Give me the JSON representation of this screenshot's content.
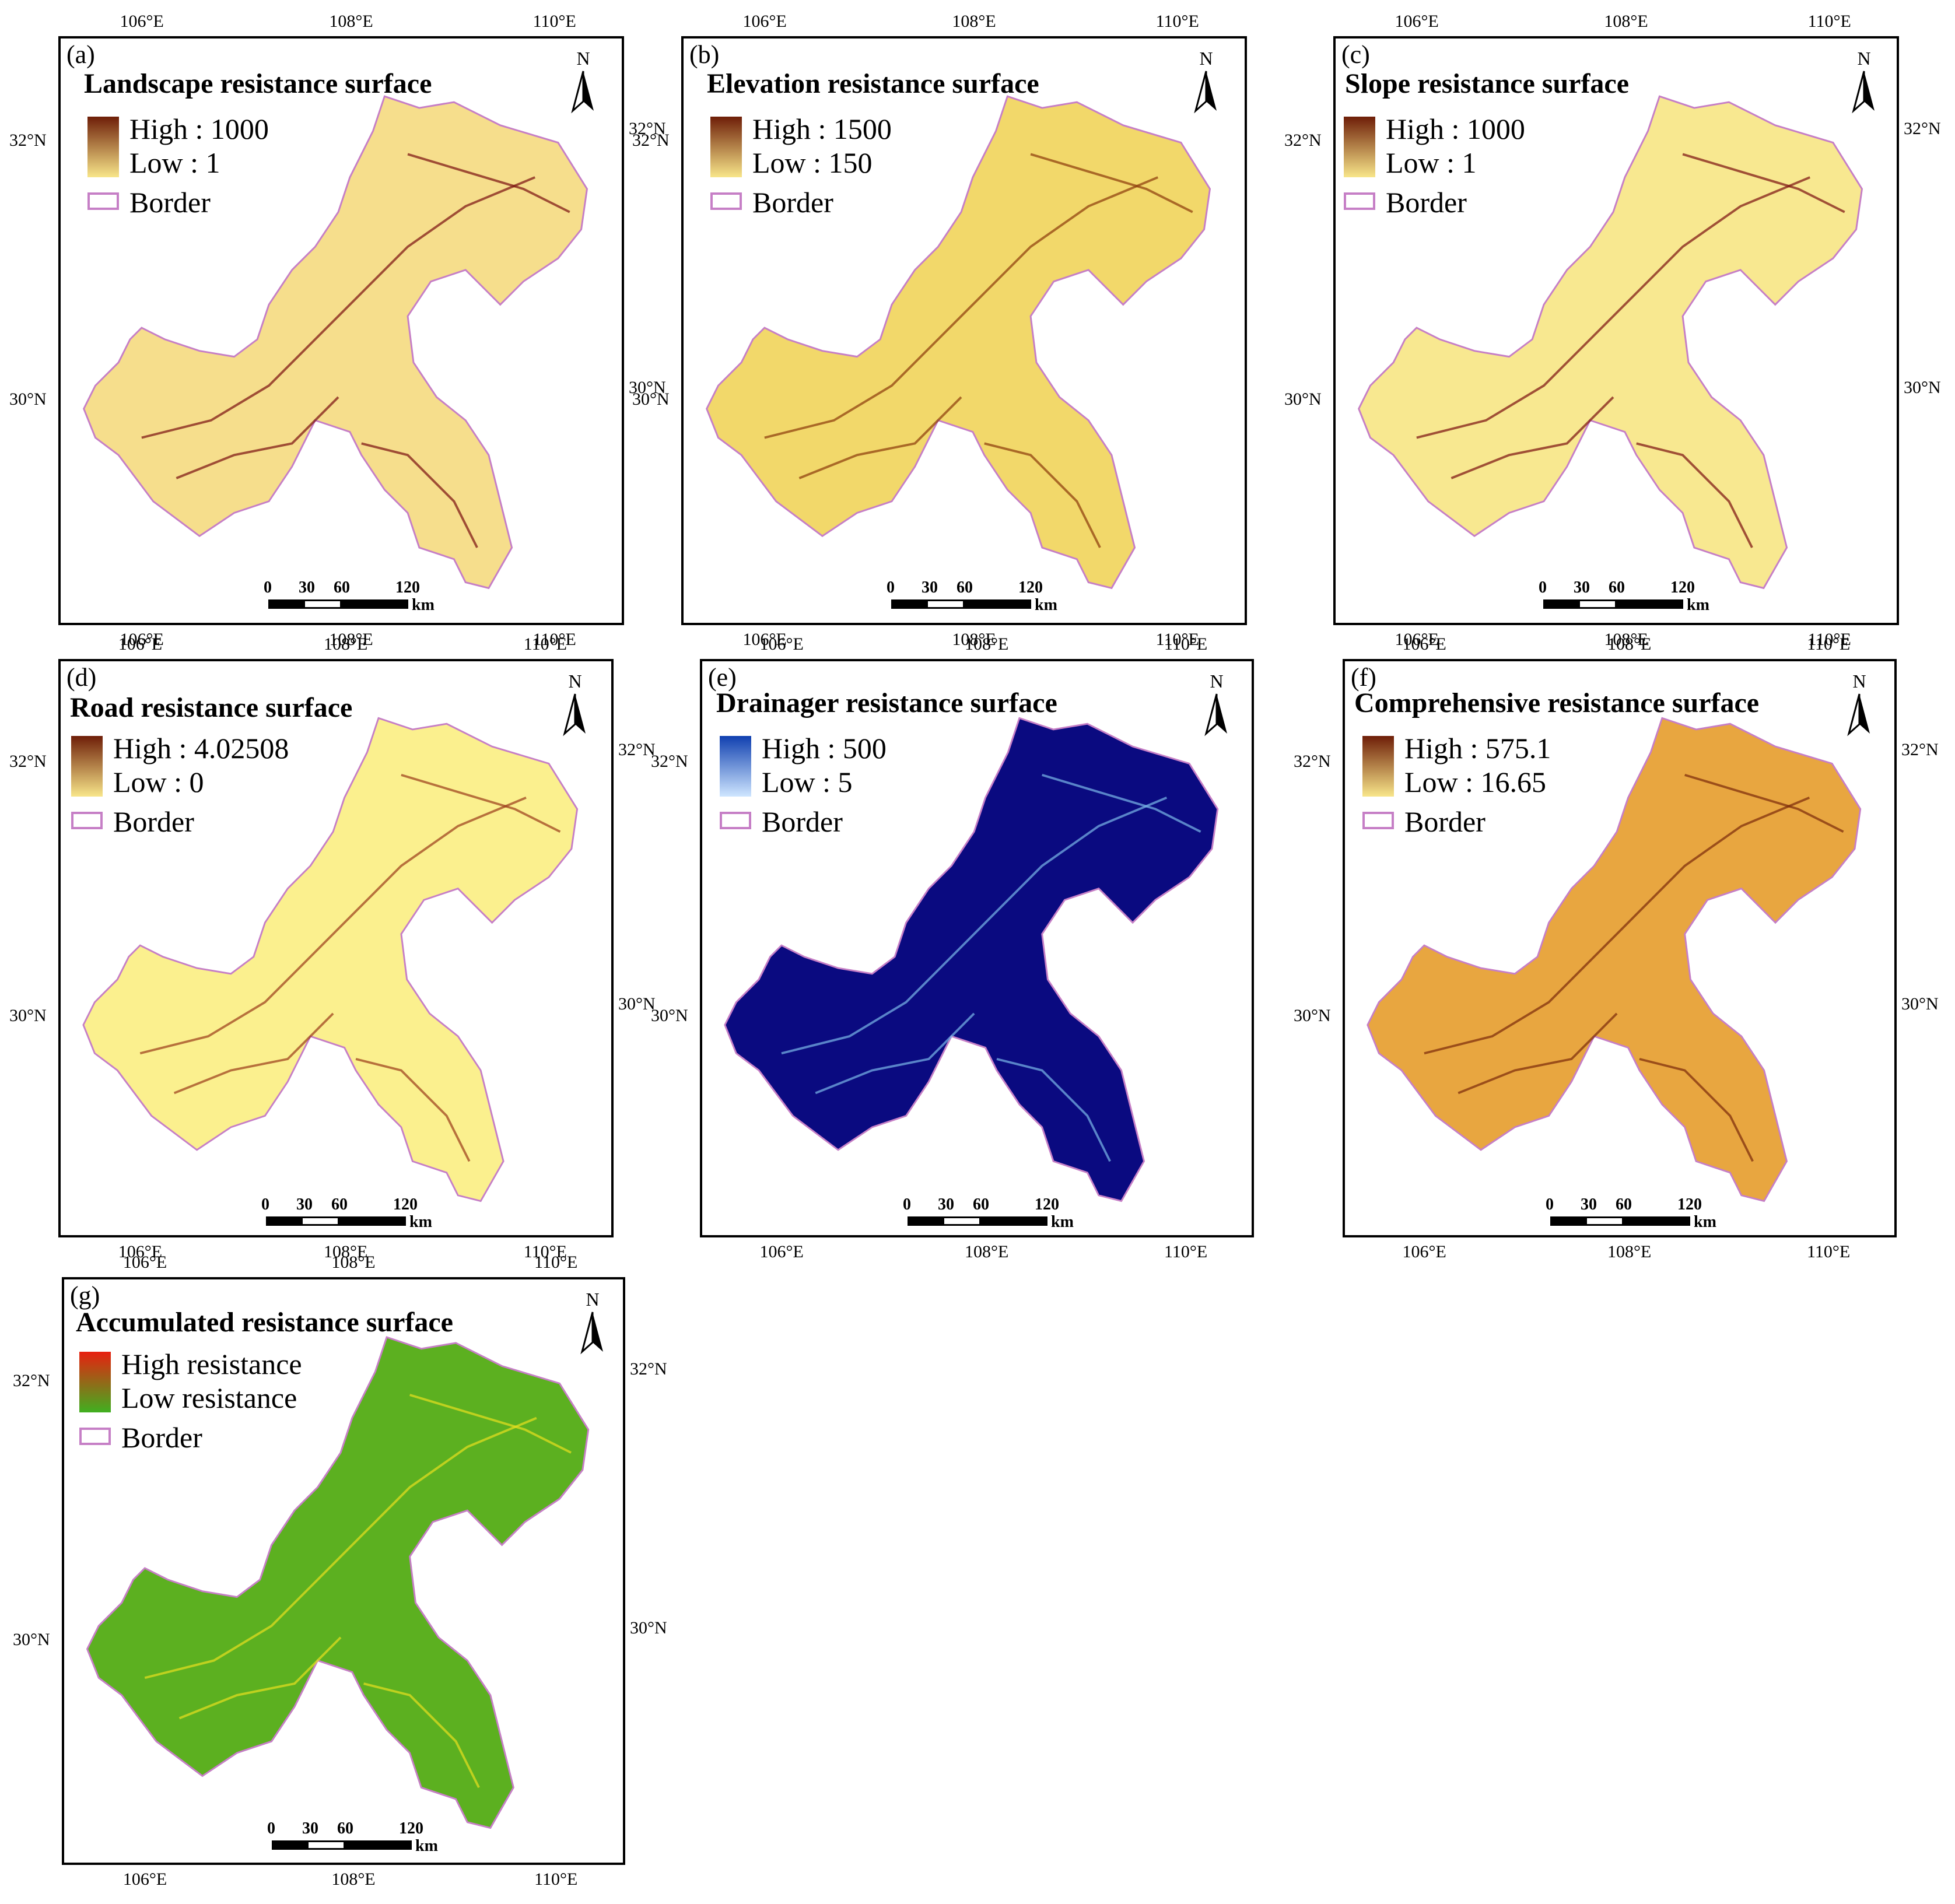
{
  "panels": [
    {
      "id": "a",
      "label": "(a)",
      "title": "Landscape resistance surface",
      "legend_high": "High : 1000",
      "legend_low": "Low : 1",
      "legend_border": "Border",
      "fill": "#f6de8c",
      "stroke_detail": "#7a1010",
      "grad_top": "#6e1e08",
      "grad_bottom": "#f8e68a"
    },
    {
      "id": "b",
      "label": "(b)",
      "title": "Elevation resistance surface",
      "legend_high": "High : 1500",
      "legend_low": "Low : 150",
      "legend_border": "Border",
      "fill": "#f2d86a",
      "stroke_detail": "#8b3a0c",
      "grad_top": "#6e1e08",
      "grad_bottom": "#f8e68a"
    },
    {
      "id": "c",
      "label": "(c)",
      "title": "Slope resistance surface",
      "legend_high": "High : 1000",
      "legend_low": "Low : 1",
      "legend_border": "Border",
      "fill": "#f8e890",
      "stroke_detail": "#7a1010",
      "grad_top": "#6e1e08",
      "grad_bottom": "#f8e68a"
    },
    {
      "id": "d",
      "label": "(d)",
      "title": "Road resistance surface",
      "legend_high": "High : 4.02508",
      "legend_low": "Low : 0",
      "legend_border": "Border",
      "fill": "#fbf08e",
      "stroke_detail": "#9a3a1a",
      "grad_top": "#6e1e08",
      "grad_bottom": "#f8e68a"
    },
    {
      "id": "e",
      "label": "(e)",
      "title": "Drainager resistance surface",
      "legend_high": "High : 500",
      "legend_low": "Low : 5",
      "legend_border": "Border",
      "fill": "#0a0a80",
      "stroke_detail": "#7ab8e8",
      "grad_top": "#1040b0",
      "grad_bottom": "#cfe6ff"
    },
    {
      "id": "f",
      "label": "(f)",
      "title": "Comprehensive resistance surface",
      "legend_high": "High : 575.1",
      "legend_low": "Low : 16.65",
      "legend_border": "Border",
      "fill": "#e8a640",
      "stroke_detail": "#7a2a0a",
      "grad_top": "#6e1e08",
      "grad_bottom": "#f8e68a"
    },
    {
      "id": "g",
      "label": "(g)",
      "title": "Accumulated resistance surface",
      "legend_high": "High resistance",
      "legend_low": "Low resistance",
      "legend_border": "Border",
      "fill": "#5cb020",
      "stroke_detail": "#e8e020",
      "grad_top": "#e82010",
      "grad_bottom": "#40b020"
    }
  ],
  "axis": {
    "lon_ticks": [
      "106°E",
      "108°E",
      "110°E"
    ],
    "lat_ticks": [
      "32°N",
      "30°N"
    ]
  },
  "north_label": "N",
  "scale": {
    "labels": [
      "0",
      "30",
      "60",
      "120"
    ],
    "unit": "km"
  }
}
